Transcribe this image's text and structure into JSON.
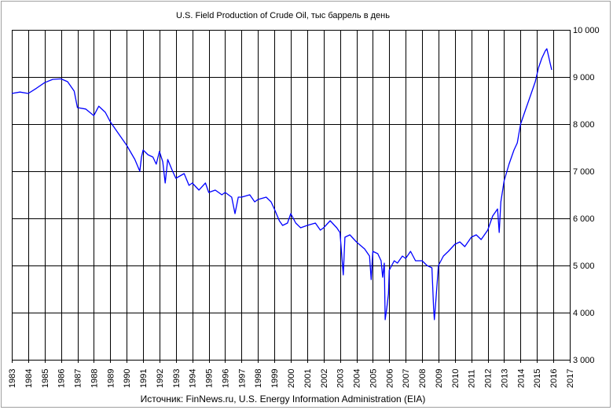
{
  "chart_data": {
    "type": "line",
    "title": "U.S. Field Production of Crude Oil, тыс баррель в день",
    "source": "Источник: FinNews.ru, U.S. Energy Information Administration (EIA)",
    "xlabel": "",
    "ylabel": "",
    "xlim": [
      1983,
      2017
    ],
    "ylim": [
      3000,
      10000
    ],
    "x_ticks": [
      "1983",
      "1984",
      "1985",
      "1986",
      "1987",
      "1988",
      "1989",
      "1990",
      "1991",
      "1992",
      "1993",
      "1994",
      "1995",
      "1996",
      "1997",
      "1998",
      "1999",
      "2000",
      "2001",
      "2002",
      "2003",
      "2004",
      "2005",
      "2006",
      "2007",
      "2008",
      "2009",
      "2010",
      "2011",
      "2012",
      "2013",
      "2014",
      "2015",
      "2016",
      "2017"
    ],
    "y_ticks": [
      {
        "value": 3000,
        "label": "3 000"
      },
      {
        "value": 4000,
        "label": "4 000"
      },
      {
        "value": 5000,
        "label": "5 000"
      },
      {
        "value": 6000,
        "label": "6 000"
      },
      {
        "value": 7000,
        "label": "7 000"
      },
      {
        "value": 8000,
        "label": "8 000"
      },
      {
        "value": 9000,
        "label": "9 000"
      },
      {
        "value": 10000,
        "label": "10 000"
      }
    ],
    "grid": true,
    "legend": "none",
    "line_color": "#0000ff",
    "series": [
      {
        "values": [
          [
            1983.0,
            8650
          ],
          [
            1983.5,
            8680
          ],
          [
            1984.0,
            8650
          ],
          [
            1984.5,
            8760
          ],
          [
            1985.0,
            8880
          ],
          [
            1985.5,
            8950
          ],
          [
            1986.0,
            8960
          ],
          [
            1986.4,
            8900
          ],
          [
            1986.8,
            8700
          ],
          [
            1987.0,
            8350
          ],
          [
            1987.5,
            8320
          ],
          [
            1988.0,
            8180
          ],
          [
            1988.3,
            8380
          ],
          [
            1988.7,
            8250
          ],
          [
            1989.0,
            8050
          ],
          [
            1989.5,
            7800
          ],
          [
            1990.0,
            7550
          ],
          [
            1990.5,
            7250
          ],
          [
            1990.8,
            7000
          ],
          [
            1990.9,
            7300
          ],
          [
            1991.0,
            7450
          ],
          [
            1991.3,
            7350
          ],
          [
            1991.6,
            7300
          ],
          [
            1991.8,
            7150
          ],
          [
            1992.0,
            7420
          ],
          [
            1992.2,
            7200
          ],
          [
            1992.35,
            6750
          ],
          [
            1992.5,
            7250
          ],
          [
            1992.8,
            7000
          ],
          [
            1993.0,
            6850
          ],
          [
            1993.5,
            6950
          ],
          [
            1993.8,
            6700
          ],
          [
            1994.0,
            6750
          ],
          [
            1994.4,
            6600
          ],
          [
            1994.8,
            6750
          ],
          [
            1995.0,
            6550
          ],
          [
            1995.4,
            6600
          ],
          [
            1995.8,
            6500
          ],
          [
            1996.0,
            6550
          ],
          [
            1996.4,
            6450
          ],
          [
            1996.6,
            6100
          ],
          [
            1996.8,
            6450
          ],
          [
            1997.0,
            6450
          ],
          [
            1997.5,
            6500
          ],
          [
            1997.8,
            6350
          ],
          [
            1998.0,
            6400
          ],
          [
            1998.5,
            6450
          ],
          [
            1998.8,
            6350
          ],
          [
            1999.0,
            6200
          ],
          [
            1999.3,
            5950
          ],
          [
            1999.5,
            5850
          ],
          [
            1999.8,
            5900
          ],
          [
            2000.0,
            6100
          ],
          [
            2000.3,
            5900
          ],
          [
            2000.6,
            5800
          ],
          [
            2001.0,
            5850
          ],
          [
            2001.5,
            5900
          ],
          [
            2001.8,
            5750
          ],
          [
            2002.0,
            5800
          ],
          [
            2002.4,
            5950
          ],
          [
            2002.8,
            5800
          ],
          [
            2003.0,
            5700
          ],
          [
            2003.1,
            5250
          ],
          [
            2003.2,
            4800
          ],
          [
            2003.3,
            5600
          ],
          [
            2003.6,
            5650
          ],
          [
            2004.0,
            5500
          ],
          [
            2004.5,
            5350
          ],
          [
            2004.8,
            5200
          ],
          [
            2004.9,
            4700
          ],
          [
            2005.0,
            5300
          ],
          [
            2005.3,
            5250
          ],
          [
            2005.5,
            5100
          ],
          [
            2005.6,
            4750
          ],
          [
            2005.7,
            5050
          ],
          [
            2005.75,
            3850
          ],
          [
            2005.85,
            4100
          ],
          [
            2005.95,
            4400
          ],
          [
            2006.0,
            4900
          ],
          [
            2006.3,
            5100
          ],
          [
            2006.5,
            5050
          ],
          [
            2006.8,
            5200
          ],
          [
            2007.0,
            5150
          ],
          [
            2007.3,
            5300
          ],
          [
            2007.6,
            5100
          ],
          [
            2008.0,
            5100
          ],
          [
            2008.3,
            5000
          ],
          [
            2008.6,
            4950
          ],
          [
            2008.7,
            4100
          ],
          [
            2008.75,
            3850
          ],
          [
            2008.85,
            4300
          ],
          [
            2009.0,
            5000
          ],
          [
            2009.3,
            5200
          ],
          [
            2009.6,
            5300
          ],
          [
            2010.0,
            5450
          ],
          [
            2010.3,
            5500
          ],
          [
            2010.6,
            5400
          ],
          [
            2011.0,
            5600
          ],
          [
            2011.3,
            5650
          ],
          [
            2011.6,
            5550
          ],
          [
            2011.8,
            5650
          ],
          [
            2012.0,
            5750
          ],
          [
            2012.3,
            6050
          ],
          [
            2012.6,
            6200
          ],
          [
            2012.7,
            5700
          ],
          [
            2012.8,
            6350
          ],
          [
            2013.0,
            6800
          ],
          [
            2013.3,
            7150
          ],
          [
            2013.6,
            7450
          ],
          [
            2013.8,
            7600
          ],
          [
            2014.0,
            8000
          ],
          [
            2014.3,
            8300
          ],
          [
            2014.6,
            8600
          ],
          [
            2014.9,
            8900
          ],
          [
            2015.1,
            9200
          ],
          [
            2015.3,
            9400
          ],
          [
            2015.5,
            9550
          ],
          [
            2015.6,
            9600
          ],
          [
            2015.7,
            9450
          ],
          [
            2015.8,
            9300
          ],
          [
            2015.9,
            9150
          ]
        ]
      }
    ]
  }
}
